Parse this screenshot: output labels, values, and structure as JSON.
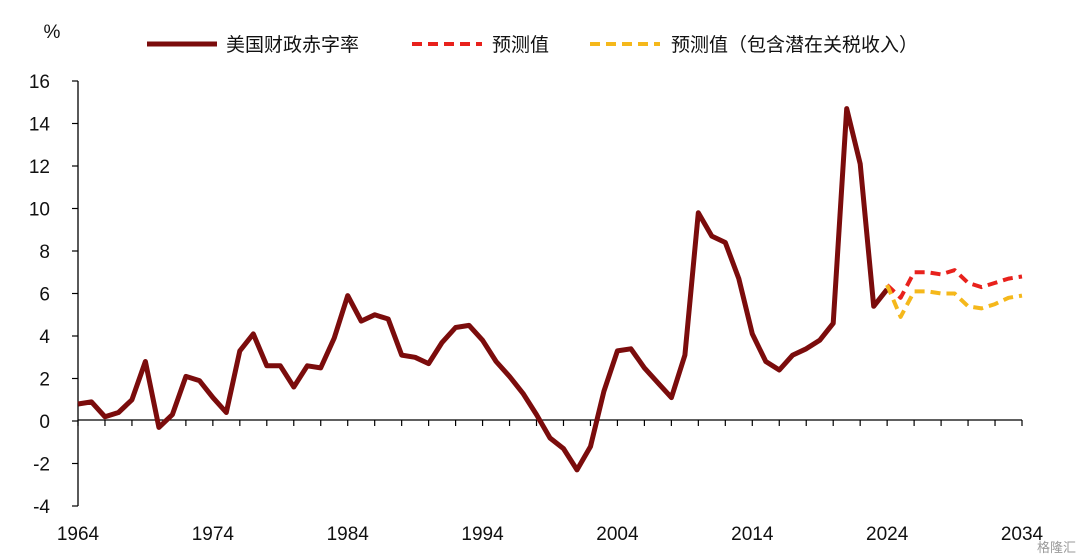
{
  "chart_data": {
    "type": "line",
    "title": "",
    "xlabel": "",
    "ylabel": "%",
    "xlim": [
      1964,
      2034
    ],
    "ylim": [
      -4,
      16
    ],
    "x_ticks": [
      "1964",
      "1974",
      "1984",
      "1994",
      "2004",
      "2014",
      "2024",
      "2034"
    ],
    "y_ticks": [
      "-4",
      "-2",
      "0",
      "2",
      "4",
      "6",
      "8",
      "10",
      "12",
      "14",
      "16"
    ],
    "grid": false,
    "legend_position": "top",
    "series": [
      {
        "name": "美国财政赤字率",
        "color": "#7b0c0c",
        "style": "solid",
        "x": [
          1964,
          1965,
          1966,
          1967,
          1968,
          1969,
          1970,
          1971,
          1972,
          1973,
          1974,
          1975,
          1976,
          1977,
          1978,
          1979,
          1980,
          1981,
          1982,
          1983,
          1984,
          1985,
          1986,
          1987,
          1988,
          1989,
          1990,
          1991,
          1992,
          1993,
          1994,
          1995,
          1996,
          1997,
          1998,
          1999,
          2000,
          2001,
          2002,
          2003,
          2004,
          2005,
          2006,
          2007,
          2008,
          2009,
          2010,
          2011,
          2012,
          2013,
          2014,
          2015,
          2016,
          2017,
          2018,
          2019,
          2020,
          2021,
          2022,
          2023,
          2024
        ],
        "y": [
          0.8,
          0.9,
          0.2,
          0.4,
          1.0,
          2.8,
          -0.3,
          0.3,
          2.1,
          1.9,
          1.1,
          0.4,
          3.3,
          4.1,
          2.6,
          2.6,
          1.6,
          2.6,
          2.5,
          3.9,
          5.9,
          4.7,
          5.0,
          4.8,
          3.1,
          3.0,
          2.7,
          3.7,
          4.4,
          4.5,
          3.8,
          2.8,
          2.1,
          1.3,
          0.3,
          -0.8,
          -1.3,
          -2.3,
          -1.2,
          1.4,
          3.3,
          3.4,
          2.5,
          1.8,
          1.1,
          3.1,
          9.8,
          8.7,
          8.4,
          6.7,
          4.1,
          2.8,
          2.4,
          3.1,
          3.4,
          3.8,
          4.6,
          14.7,
          12.1,
          5.4,
          6.2
        ]
      },
      {
        "name": "预测值",
        "color": "#e8211c",
        "style": "dashed",
        "x": [
          2024,
          2025,
          2026,
          2027,
          2028,
          2029,
          2030,
          2031,
          2032,
          2033,
          2034
        ],
        "y": [
          6.4,
          5.8,
          7.0,
          7.0,
          6.9,
          7.1,
          6.5,
          6.3,
          6.5,
          6.7,
          6.8
        ]
      },
      {
        "name": "预测值（包含潜在关税收入）",
        "color": "#f5b81b",
        "style": "dashed",
        "x": [
          2024,
          2025,
          2026,
          2027,
          2028,
          2029,
          2030,
          2031,
          2032,
          2033,
          2034
        ],
        "y": [
          6.4,
          4.9,
          6.1,
          6.1,
          6.0,
          6.0,
          5.4,
          5.3,
          5.5,
          5.8,
          5.9
        ]
      }
    ]
  },
  "watermark": "格隆汇"
}
